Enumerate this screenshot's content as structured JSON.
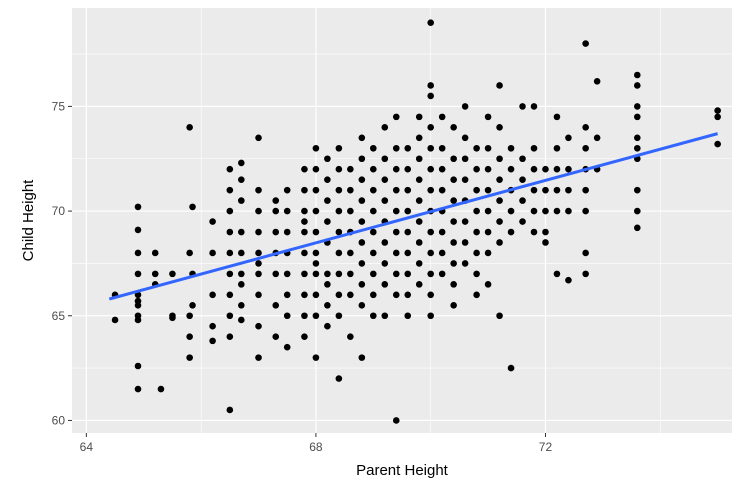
{
  "chart_data": {
    "type": "scatter",
    "title": "",
    "xlabel": "Parent Height",
    "ylabel": "Child Height",
    "xlim": [
      63.75,
      75.25
    ],
    "ylim": [
      59.4,
      79.7
    ],
    "x_ticks": [
      64,
      68,
      72
    ],
    "x_tick_labels": [
      "64",
      "68",
      "72"
    ],
    "y_ticks": [
      60,
      65,
      70,
      75
    ],
    "y_tick_labels": [
      "60",
      "65",
      "70",
      "75"
    ],
    "grid": true,
    "legend": "none",
    "colors": {
      "panel": "#ebebeb",
      "grid": "#ffffff",
      "points": "#000000",
      "trend_line": "#3366ff"
    },
    "trend_line": {
      "x": [
        64.4,
        75.0
      ],
      "y": [
        65.8,
        73.7
      ]
    },
    "point_columns": [
      {
        "x": 64.5,
        "y": [
          66.0,
          64.8
        ]
      },
      {
        "x": 64.9,
        "y": [
          70.2,
          69.1,
          68.0,
          67.0,
          66.0,
          65.7,
          65.5,
          65.0,
          64.8,
          62.6,
          61.5
        ]
      },
      {
        "x": 65.2,
        "y": [
          68.0,
          67.0,
          66.5
        ]
      },
      {
        "x": 65.3,
        "y": [
          61.5
        ]
      },
      {
        "x": 65.5,
        "y": [
          67.0,
          65.0,
          64.9
        ]
      },
      {
        "x": 65.8,
        "y": [
          74.0,
          68.0,
          65.0,
          64.0,
          63.0
        ]
      },
      {
        "x": 65.85,
        "y": [
          70.2,
          67.0,
          65.5
        ]
      },
      {
        "x": 66.2,
        "y": [
          69.5,
          68.0,
          66.0,
          64.5,
          63.8
        ]
      },
      {
        "x": 66.5,
        "y": [
          72.0,
          71.0,
          70.0,
          69.0,
          68.0,
          67.0,
          66.0,
          65.0,
          64.0,
          60.5
        ]
      },
      {
        "x": 66.7,
        "y": [
          72.3,
          71.5,
          70.5,
          69.0,
          68.0,
          67.0,
          66.5,
          65.5,
          64.8
        ]
      },
      {
        "x": 67.0,
        "y": [
          73.5,
          71.0,
          70.0,
          69.0,
          68.0,
          67.5,
          67.0,
          66.0,
          64.5,
          63.0
        ]
      },
      {
        "x": 67.3,
        "y": [
          70.5,
          70.0,
          69.0,
          68.0,
          67.0,
          65.5,
          64.0
        ]
      },
      {
        "x": 67.5,
        "y": [
          71.0,
          70.0,
          69.0,
          68.0,
          67.0,
          66.0,
          65.0,
          63.5
        ]
      },
      {
        "x": 67.8,
        "y": [
          72.0,
          71.0,
          70.0,
          69.5,
          69.0,
          68.0,
          67.0,
          66.0,
          65.0,
          64.0
        ]
      },
      {
        "x": 68.0,
        "y": [
          73.0,
          72.0,
          71.0,
          70.0,
          69.0,
          68.0,
          67.5,
          67.0,
          66.0,
          65.0,
          63.0
        ]
      },
      {
        "x": 68.2,
        "y": [
          72.5,
          71.5,
          70.5,
          69.5,
          68.5,
          67.0,
          66.5,
          65.5,
          64.5
        ]
      },
      {
        "x": 68.4,
        "y": [
          73.0,
          72.0,
          71.0,
          70.0,
          69.0,
          68.0,
          67.0,
          66.0,
          65.0,
          62.0
        ]
      },
      {
        "x": 68.6,
        "y": [
          72.0,
          71.0,
          70.0,
          69.0,
          68.0,
          67.0,
          66.0,
          64.0
        ]
      },
      {
        "x": 68.8,
        "y": [
          73.5,
          72.5,
          71.5,
          70.5,
          69.5,
          68.5,
          67.5,
          66.5,
          65.5,
          63.0
        ]
      },
      {
        "x": 69.0,
        "y": [
          73.0,
          72.0,
          71.0,
          70.0,
          69.0,
          68.0,
          67.0,
          66.0,
          65.0
        ]
      },
      {
        "x": 69.2,
        "y": [
          74.0,
          72.5,
          71.5,
          70.5,
          69.5,
          68.5,
          67.5,
          66.5,
          65.0
        ]
      },
      {
        "x": 69.4,
        "y": [
          74.5,
          73.0,
          72.0,
          71.0,
          70.0,
          69.0,
          68.0,
          67.0,
          66.0,
          60.0
        ]
      },
      {
        "x": 69.6,
        "y": [
          73.0,
          72.0,
          71.0,
          70.0,
          69.0,
          68.0,
          67.0,
          66.0,
          65.0
        ]
      },
      {
        "x": 69.8,
        "y": [
          74.5,
          73.5,
          72.5,
          71.5,
          70.5,
          69.5,
          68.5,
          67.5,
          66.5
        ]
      },
      {
        "x": 70.0,
        "y": [
          76.0,
          75.5,
          74.0,
          73.0,
          72.0,
          71.0,
          70.0,
          69.0,
          68.0,
          67.0,
          66.0,
          65.0,
          79.0
        ]
      },
      {
        "x": 70.2,
        "y": [
          74.5,
          73.0,
          72.0,
          71.0,
          70.0,
          69.0,
          68.0,
          67.0
        ]
      },
      {
        "x": 70.4,
        "y": [
          74.0,
          72.5,
          71.5,
          70.5,
          69.5,
          68.5,
          67.5,
          66.5,
          65.5
        ]
      },
      {
        "x": 70.6,
        "y": [
          75.0,
          73.5,
          72.5,
          71.5,
          70.5,
          69.5,
          68.5,
          67.5
        ]
      },
      {
        "x": 70.8,
        "y": [
          73.0,
          72.0,
          71.0,
          70.0,
          69.0,
          68.0,
          67.0,
          66.0
        ]
      },
      {
        "x": 71.0,
        "y": [
          74.5,
          73.0,
          72.0,
          71.0,
          70.0,
          69.0,
          68.0,
          66.5
        ]
      },
      {
        "x": 71.2,
        "y": [
          76.0,
          74.0,
          72.5,
          71.5,
          70.5,
          69.5,
          68.5,
          65.0
        ]
      },
      {
        "x": 71.4,
        "y": [
          73.0,
          72.0,
          71.0,
          70.0,
          69.0,
          62.5
        ]
      },
      {
        "x": 71.6,
        "y": [
          75.0,
          72.5,
          71.5,
          70.5,
          69.5
        ]
      },
      {
        "x": 71.8,
        "y": [
          75.0,
          73.0,
          72.0,
          71.0,
          70.0,
          69.0
        ]
      },
      {
        "x": 72.0,
        "y": [
          72.0,
          71.0,
          70.0,
          69.0,
          68.5
        ]
      },
      {
        "x": 72.2,
        "y": [
          74.5,
          73.0,
          72.0,
          71.0,
          70.0,
          67.0
        ]
      },
      {
        "x": 72.4,
        "y": [
          73.5,
          72.0,
          71.0,
          70.0,
          66.7
        ]
      },
      {
        "x": 72.7,
        "y": [
          78.0,
          74.0,
          73.0,
          72.0,
          71.0,
          70.0,
          68.0,
          67.0
        ]
      },
      {
        "x": 72.9,
        "y": [
          76.2,
          73.5,
          72.0
        ]
      },
      {
        "x": 73.6,
        "y": [
          76.5,
          76.0,
          75.0,
          74.5,
          73.5,
          73.0,
          72.5,
          71.0,
          70.0,
          69.2
        ]
      },
      {
        "x": 75.0,
        "y": [
          74.8,
          74.5,
          73.2
        ]
      }
    ]
  }
}
